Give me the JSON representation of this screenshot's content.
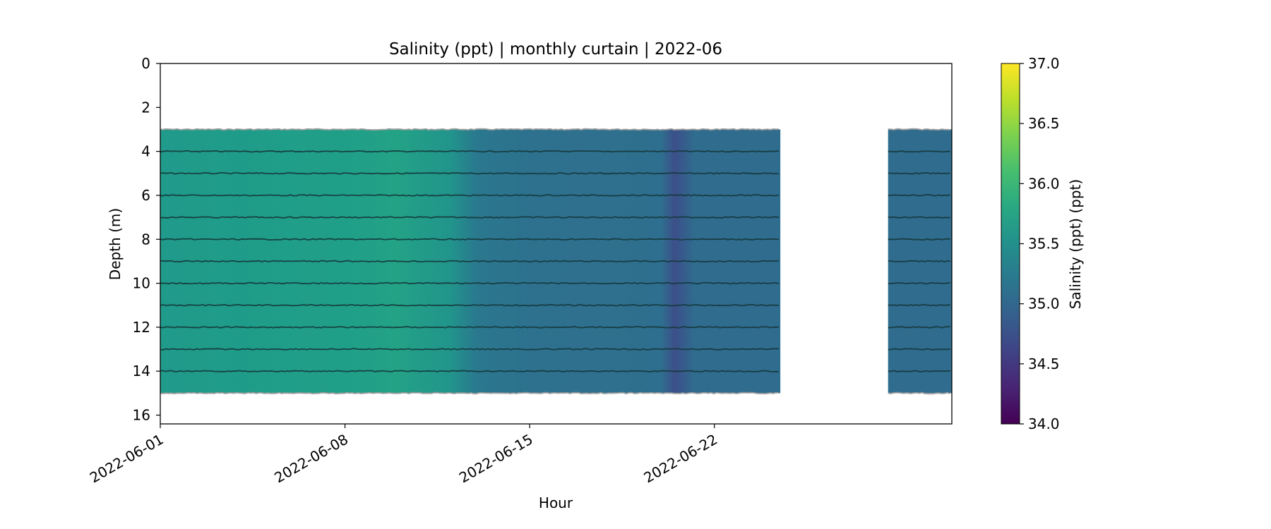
{
  "chart_data": {
    "type": "heatmap",
    "title": "Salinity (ppt) | monthly curtain | 2022-06",
    "xlabel": "Hour",
    "ylabel": "Depth (m)",
    "x_range": [
      "2022-06-01",
      "2022-07-01"
    ],
    "x_ticks": [
      "2022-06-01",
      "2022-06-08",
      "2022-06-15",
      "2022-06-22"
    ],
    "y_range": [
      0,
      16.4
    ],
    "y_inverted": true,
    "y_ticks": [
      0,
      2,
      4,
      6,
      8,
      10,
      12,
      14,
      16
    ],
    "colorbar": {
      "label": "Salinity (ppt) (ppt)",
      "range": [
        34.0,
        37.0
      ],
      "ticks": [
        "34.0",
        "34.5",
        "35.0",
        "35.5",
        "36.0",
        "36.5",
        "37.0"
      ],
      "colormap": "viridis"
    },
    "sensor_depths": [
      3,
      4,
      5,
      6,
      7,
      8,
      9,
      10,
      11,
      12,
      13,
      14,
      15
    ],
    "data_blocks": [
      {
        "start": "2022-06-01",
        "end": "2022-06-24 12:00",
        "depth_top": 3,
        "depth_bottom": 15
      },
      {
        "start": "2022-06-28 14:00",
        "end": "2022-07-01",
        "depth_top": 3,
        "depth_bottom": 15
      }
    ],
    "surface_salinity_profile": [
      {
        "date": "2022-06-01",
        "value": 35.62
      },
      {
        "date": "2022-06-05",
        "value": 35.66
      },
      {
        "date": "2022-06-08",
        "value": 35.68
      },
      {
        "date": "2022-06-10",
        "value": 35.72
      },
      {
        "date": "2022-06-12",
        "value": 35.55
      },
      {
        "date": "2022-06-13",
        "value": 35.2
      },
      {
        "date": "2022-06-15",
        "value": 35.12
      },
      {
        "date": "2022-06-18",
        "value": 35.1
      },
      {
        "date": "2022-06-20",
        "value": 35.08
      },
      {
        "date": "2022-06-20 12:00",
        "value": 34.72
      },
      {
        "date": "2022-06-21 06:00",
        "value": 35.05
      },
      {
        "date": "2022-06-24 12:00",
        "value": 35.05
      },
      {
        "date": "2022-06-28 14:00",
        "value": 35.05
      },
      {
        "date": "2022-07-01",
        "value": 35.05
      }
    ]
  }
}
